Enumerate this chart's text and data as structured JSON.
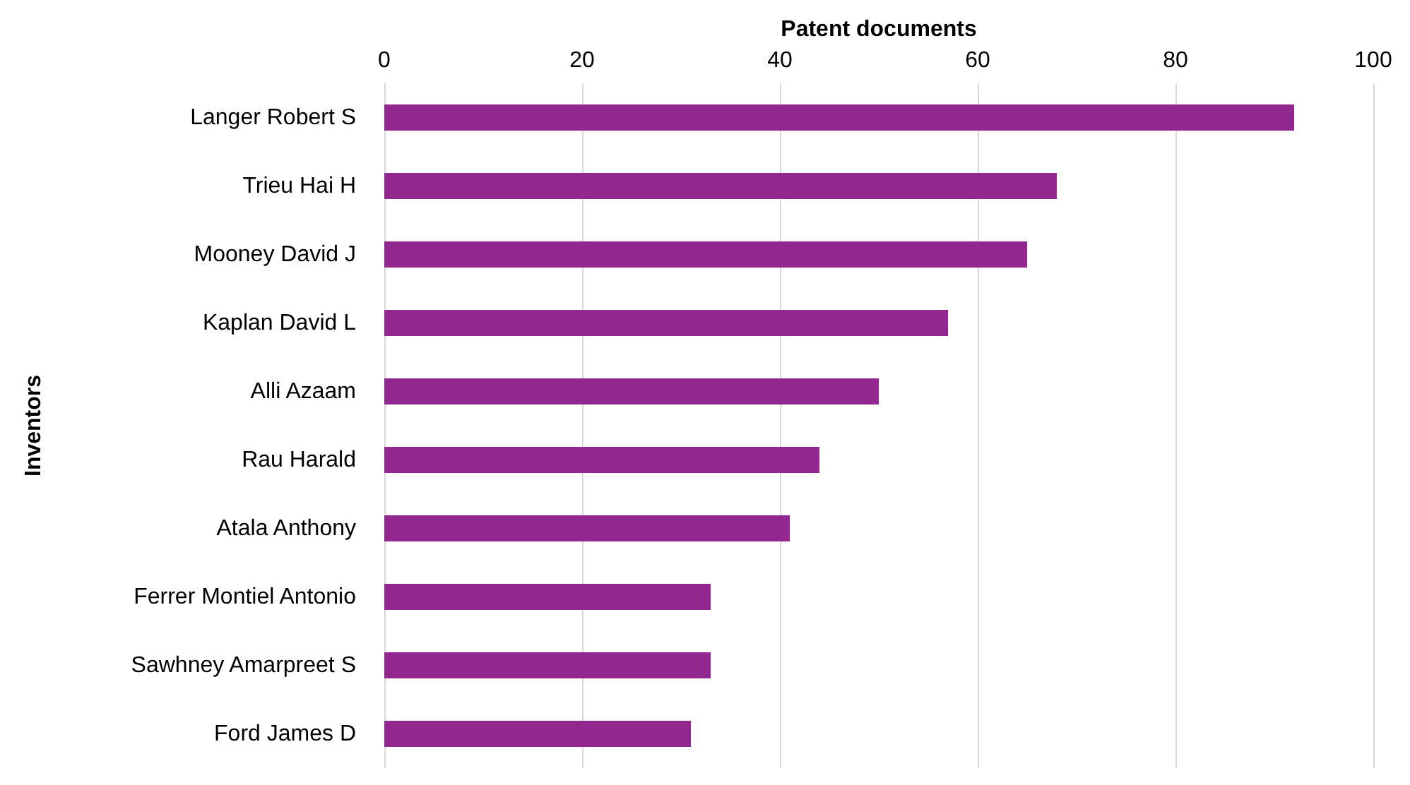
{
  "chart_data": {
    "type": "bar",
    "orientation": "horizontal",
    "xlabel": "Patent documents",
    "ylabel": "Inventors",
    "categories": [
      "Langer Robert S",
      "Trieu Hai H",
      "Mooney David J",
      "Kaplan David L",
      "Alli Azaam",
      "Rau Harald",
      "Atala Anthony",
      "Ferrer Montiel Antonio",
      "Sawhney Amarpreet S",
      "Ford James D"
    ],
    "values": [
      92,
      68,
      65,
      57,
      50,
      44,
      41,
      33,
      33,
      31
    ],
    "color": "#92278f",
    "xlim": [
      0,
      100
    ],
    "xticks": [
      0,
      20,
      40,
      60,
      80,
      100
    ],
    "grid": "x"
  }
}
